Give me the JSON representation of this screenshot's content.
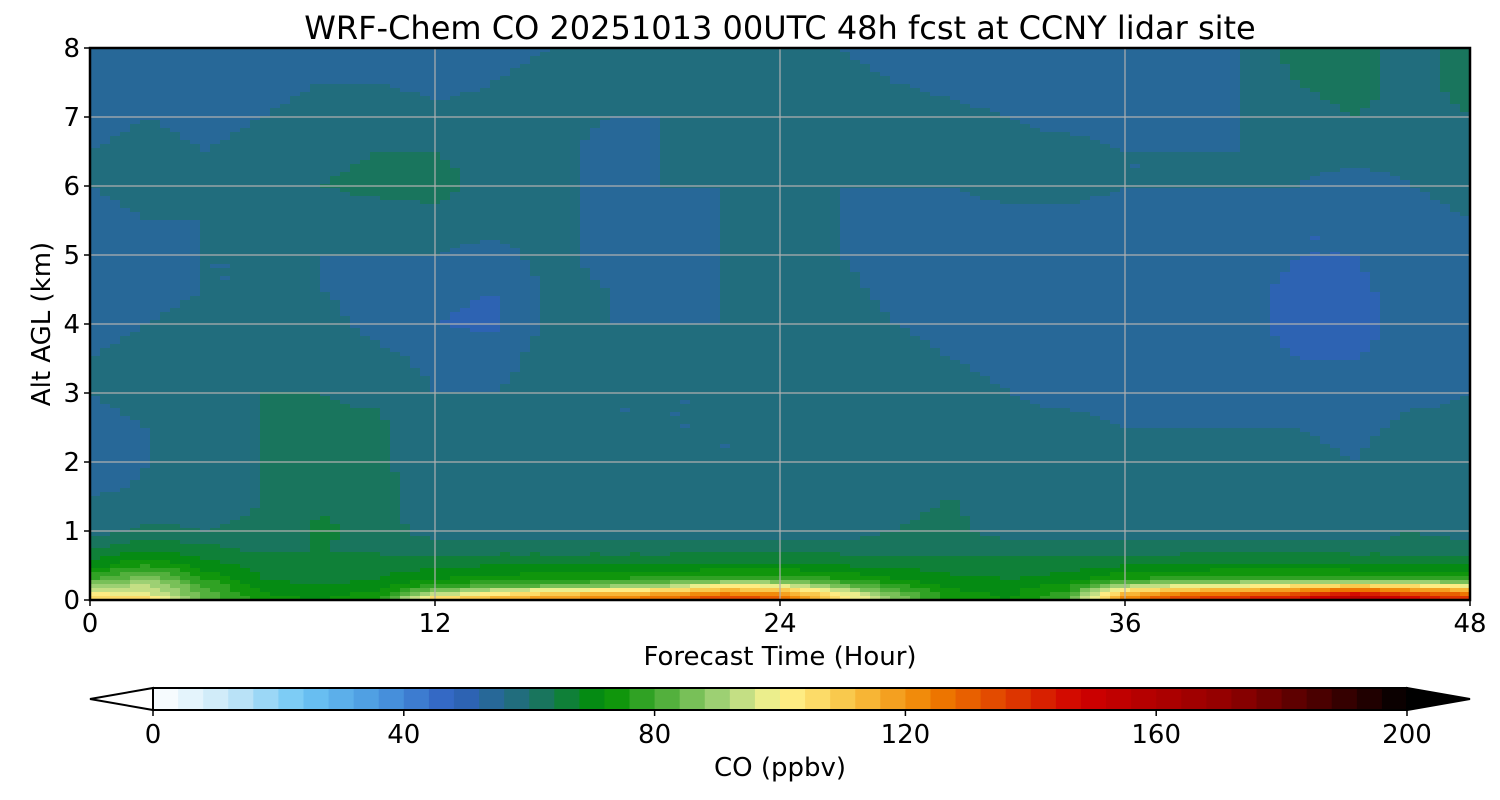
{
  "chart_data": {
    "type": "heatmap",
    "title": "WRF-Chem CO  20251013 00UTC 48h fcst at CCNY lidar site",
    "xlabel": "Forecast Time (Hour)",
    "ylabel": "Alt AGL (km)",
    "xlim": [
      0,
      48
    ],
    "ylim": [
      0,
      8
    ],
    "xticks": [
      "0",
      "12",
      "24",
      "36",
      "48"
    ],
    "yticks": [
      "0",
      "1",
      "2",
      "3",
      "4",
      "5",
      "6",
      "7",
      "8"
    ],
    "grid": true,
    "colorbar": {
      "label": "CO  (ppbv)",
      "orientation": "horizontal",
      "placement": "bottom",
      "range": [
        0,
        200
      ],
      "step": 4,
      "extend": "both",
      "ticks": [
        "0",
        "40",
        "80",
        "120",
        "160",
        "200"
      ],
      "tick_values": [
        0,
        40,
        80,
        120,
        160,
        200
      ],
      "color_stops": [
        {
          "value": 0,
          "color": "#ffffff"
        },
        {
          "value": 12,
          "color": "#c8e8f8"
        },
        {
          "value": 24,
          "color": "#6ec6f4"
        },
        {
          "value": 36,
          "color": "#4a98e0"
        },
        {
          "value": 48,
          "color": "#3060c0"
        },
        {
          "value": 60,
          "color": "#1e7070"
        },
        {
          "value": 72,
          "color": "#009000"
        },
        {
          "value": 80,
          "color": "#40a830"
        },
        {
          "value": 92,
          "color": "#b0d880"
        },
        {
          "value": 100,
          "color": "#fff590"
        },
        {
          "value": 112,
          "color": "#f8c040"
        },
        {
          "value": 124,
          "color": "#f08000"
        },
        {
          "value": 148,
          "color": "#d00000"
        },
        {
          "value": 172,
          "color": "#900000"
        },
        {
          "value": 188,
          "color": "#400000"
        },
        {
          "value": 200,
          "color": "#000000"
        }
      ],
      "under_color": "#ffffff",
      "over_color": "#000000"
    },
    "x": [
      0,
      2,
      4,
      6,
      8,
      10,
      12,
      14,
      16,
      18,
      20,
      22,
      24,
      26,
      28,
      30,
      32,
      34,
      36,
      38,
      40,
      42,
      44,
      46,
      48
    ],
    "y": [
      0,
      0.1,
      0.2,
      0.3,
      0.5,
      0.75,
      1,
      1.5,
      2,
      2.5,
      3,
      3.5,
      4,
      4.5,
      5,
      5.5,
      6,
      6.5,
      7,
      7.5,
      8
    ],
    "values": [
      [
        110,
        108,
        84,
        74,
        72,
        75,
        110,
        118,
        122,
        126,
        130,
        140,
        135,
        108,
        88,
        74,
        72,
        80,
        125,
        140,
        145,
        150,
        165,
        150,
        140
      ],
      [
        100,
        96,
        82,
        72,
        70,
        73,
        90,
        100,
        108,
        112,
        115,
        122,
        118,
        100,
        84,
        73,
        71,
        78,
        112,
        122,
        125,
        130,
        142,
        132,
        125
      ],
      [
        90,
        93,
        80,
        70,
        68,
        70,
        78,
        82,
        85,
        88,
        92,
        102,
        100,
        86,
        78,
        71,
        70,
        74,
        92,
        98,
        100,
        106,
        110,
        105,
        100
      ],
      [
        80,
        88,
        76,
        68,
        67,
        68,
        72,
        74,
        75,
        76,
        78,
        80,
        80,
        76,
        72,
        69,
        68,
        70,
        76,
        78,
        80,
        80,
        80,
        80,
        78
      ],
      [
        70,
        76,
        70,
        66,
        66,
        66,
        67,
        68,
        68,
        68,
        68,
        69,
        69,
        68,
        67,
        66,
        66,
        66,
        68,
        68,
        69,
        69,
        68,
        68,
        68
      ],
      [
        64,
        67,
        65,
        63,
        64,
        63,
        62,
        62,
        62,
        62,
        62,
        62,
        62,
        62,
        62,
        62,
        62,
        62,
        62,
        62,
        62,
        62,
        62,
        62,
        62
      ],
      [
        58,
        61,
        60,
        61,
        65,
        62,
        58,
        57,
        57,
        57,
        58,
        57,
        57,
        58,
        60,
        61,
        58,
        58,
        57,
        58,
        58,
        58,
        57,
        60,
        58
      ],
      [
        56,
        57,
        57,
        60,
        63,
        62,
        57,
        56,
        56,
        56,
        57,
        56,
        56,
        57,
        59,
        60,
        58,
        57,
        56,
        57,
        57,
        57,
        56,
        59,
        57
      ],
      [
        52,
        56,
        57,
        60,
        62,
        61,
        57,
        56,
        56,
        56,
        57,
        56,
        56,
        57,
        58,
        60,
        58,
        57,
        56,
        57,
        57,
        57,
        56,
        58,
        57
      ],
      [
        55,
        56,
        58,
        60,
        61,
        61,
        57,
        56,
        57,
        56,
        56,
        56,
        56,
        57,
        57,
        59,
        57,
        57,
        56,
        56,
        56,
        56,
        55,
        57,
        57
      ],
      [
        56,
        57,
        59,
        60,
        60,
        59,
        56,
        56,
        58,
        56,
        56,
        56,
        57,
        58,
        57,
        57,
        56,
        55,
        55,
        55,
        55,
        54,
        54,
        55,
        56
      ],
      [
        56,
        57,
        58,
        59,
        58,
        57,
        55,
        54,
        58,
        56,
        56,
        56,
        57,
        58,
        57,
        56,
        55,
        54,
        54,
        53,
        53,
        52,
        52,
        53,
        55
      ],
      [
        55,
        56,
        57,
        57,
        57,
        55,
        52,
        51,
        57,
        56,
        56,
        56,
        57,
        58,
        56,
        55,
        54,
        54,
        53,
        53,
        53,
        51,
        51,
        53,
        55
      ],
      [
        54,
        55,
        56,
        56,
        56,
        55,
        53,
        52,
        57,
        56,
        55,
        56,
        58,
        57,
        55,
        55,
        54,
        54,
        53,
        53,
        53,
        51,
        51,
        54,
        55
      ],
      [
        52,
        55,
        56,
        56,
        56,
        56,
        56,
        55,
        57,
        55,
        55,
        56,
        58,
        56,
        55,
        55,
        55,
        55,
        54,
        54,
        54,
        52,
        52,
        55,
        56
      ],
      [
        55,
        56,
        56,
        57,
        58,
        58,
        58,
        57,
        57,
        55,
        55,
        56,
        57,
        56,
        55,
        55,
        55,
        55,
        55,
        55,
        54,
        52,
        52,
        55,
        56
      ],
      [
        56,
        57,
        56,
        57,
        60,
        61,
        62,
        58,
        57,
        55,
        56,
        56,
        57,
        56,
        56,
        56,
        57,
        57,
        56,
        56,
        56,
        56,
        54,
        56,
        57
      ],
      [
        56,
        57,
        56,
        57,
        59,
        60,
        60,
        58,
        57,
        55,
        56,
        57,
        58,
        58,
        58,
        57,
        57,
        57,
        56,
        56,
        56,
        57,
        58,
        57,
        58
      ],
      [
        55,
        56,
        55,
        56,
        57,
        58,
        57,
        57,
        57,
        56,
        56,
        58,
        59,
        59,
        58,
        57,
        56,
        55,
        55,
        55,
        56,
        58,
        60,
        58,
        60
      ],
      [
        53,
        54,
        54,
        55,
        56,
        56,
        55,
        56,
        57,
        56,
        56,
        57,
        58,
        57,
        56,
        55,
        54,
        54,
        54,
        55,
        56,
        60,
        62,
        58,
        62
      ],
      [
        52,
        53,
        53,
        54,
        55,
        55,
        55,
        55,
        56,
        56,
        56,
        56,
        57,
        56,
        55,
        54,
        53,
        53,
        53,
        54,
        56,
        62,
        64,
        56,
        64
      ]
    ]
  }
}
